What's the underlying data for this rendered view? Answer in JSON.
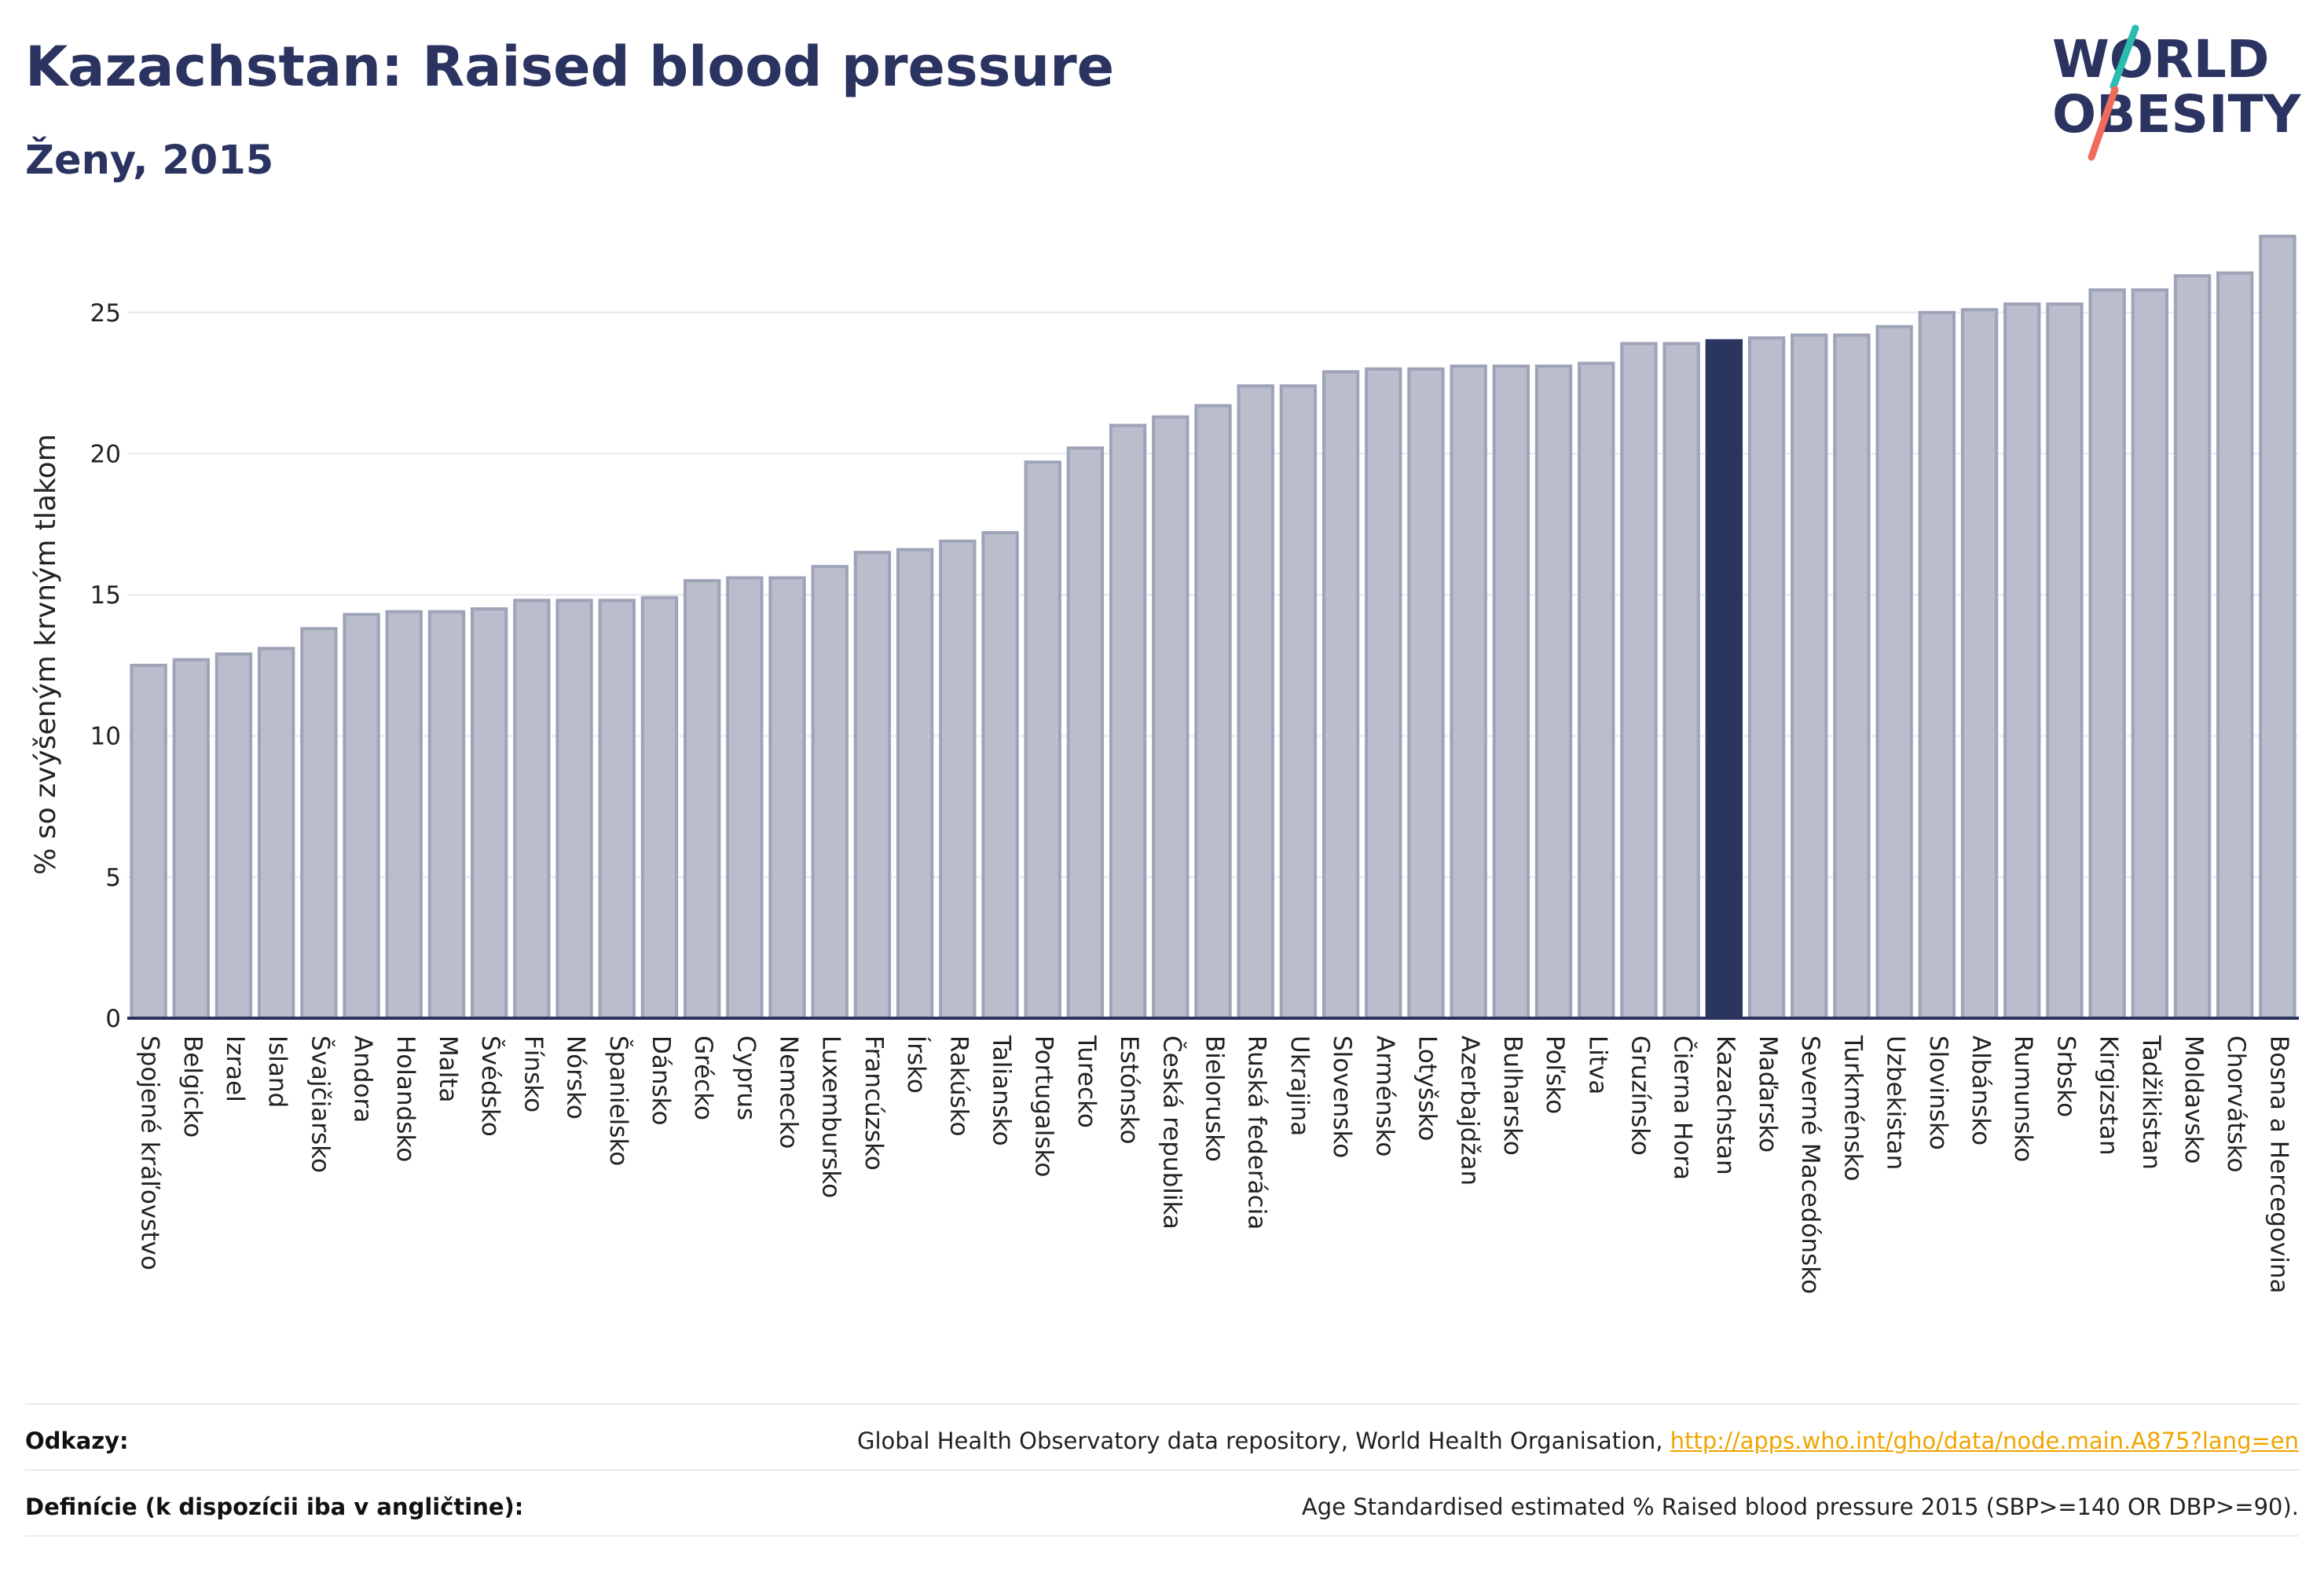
{
  "title": "Kazachstan: Raised blood pressure",
  "subtitle": "Ženy, 2015",
  "logo": {
    "line1": "WORLD",
    "line2": "OBESITY"
  },
  "colors": {
    "bar": "#b9bdcc",
    "bar_edge": "#9ea3b8",
    "highlight": "#2b3660",
    "grid": "#e6e8ef",
    "axis": "#2b3360",
    "link": "#f0a500"
  },
  "chart_data": {
    "type": "bar",
    "ylabel": "% so zvýšeným krvným tlakom",
    "ylim": [
      0,
      28
    ],
    "yticks": [
      0,
      5,
      10,
      15,
      20,
      25
    ],
    "grid": true,
    "highlight": "Kazachstan",
    "categories": [
      "Spojené kráľovstvo",
      "Belgicko",
      "Izrael",
      "Island",
      "Švajčiarsko",
      "Andora",
      "Holandsko",
      "Malta",
      "Švédsko",
      "Fínsko",
      "Nórsko",
      "Španielsko",
      "Dánsko",
      "Grécko",
      "Cyprus",
      "Nemecko",
      "Luxembursko",
      "Francúzsko",
      "Írsko",
      "Rakúsko",
      "Taliansko",
      "Portugalsko",
      "Turecko",
      "Estónsko",
      "Česká republika",
      "Bielorusko",
      "Ruská federácia",
      "Ukrajina",
      "Slovensko",
      "Arménsko",
      "Lotyšsko",
      "Azerbajdžan",
      "Bulharsko",
      "Poľsko",
      "Litva",
      "Gruzínsko",
      "Čierna Hora",
      "Kazachstan",
      "Maďarsko",
      "Severné Macedónsko",
      "Turkménsko",
      "Uzbekistan",
      "Slovinsko",
      "Albánsko",
      "Rumunsko",
      "Srbsko",
      "Kirgizstan",
      "Tadžikistan",
      "Moldavsko",
      "Chorvátsko",
      "Bosna a Hercegovina"
    ],
    "values": [
      12.5,
      12.7,
      12.9,
      13.1,
      13.8,
      14.3,
      14.4,
      14.4,
      14.5,
      14.8,
      14.8,
      14.8,
      14.9,
      15.5,
      15.6,
      15.6,
      16.0,
      16.5,
      16.6,
      16.9,
      17.2,
      19.7,
      20.2,
      21.0,
      21.3,
      21.7,
      22.4,
      22.4,
      22.9,
      23.0,
      23.0,
      23.1,
      23.1,
      23.1,
      23.2,
      23.9,
      23.9,
      24.0,
      24.1,
      24.2,
      24.2,
      24.5,
      25.0,
      25.1,
      25.3,
      25.3,
      25.8,
      25.8,
      26.3,
      26.4,
      27.7
    ]
  },
  "footer": {
    "refs_label": "Odkazy:",
    "refs_text": "Global Health Observatory data repository, World Health Organisation, ",
    "refs_link": "http://apps.who.int/gho/data/node.main.A875?lang=en",
    "defs_label": "Definície (k dispozícii iba v angličtine):",
    "defs_text": "Age Standardised estimated % Raised blood pressure 2015 (SBP>=140 OR DBP>=90)."
  }
}
